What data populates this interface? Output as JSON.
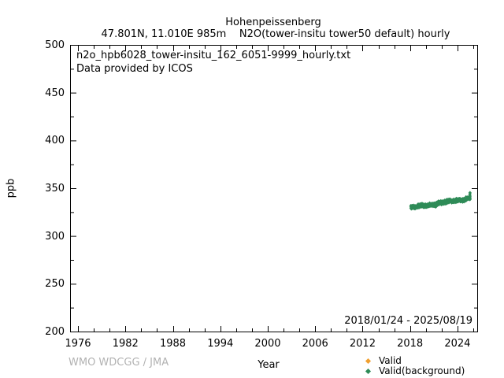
{
  "header": {
    "title": "Hohenpeissenberg",
    "subtitle": "47.801N, 11.010E 985m    N2O(tower-insitu tower50 default) hourly"
  },
  "plot": {
    "annotation_line1": "n2o_hpb6028_tower-insitu_162_6051-9999_hourly.txt",
    "annotation_line2": "Data provided by ICOS",
    "date_range": "2018/01/24 - 2025/08/19",
    "xlabel": "Year",
    "ylabel": "ppb"
  },
  "footer": {
    "credit": "WMO WDCGG / JMA"
  },
  "chart_data": {
    "type": "scatter",
    "title": "Hohenpeissenberg",
    "subtitle": "47.801N, 11.010E 985m    N2O(tower-insitu tower50 default) hourly",
    "xlabel": "Year",
    "ylabel": "ppb",
    "xlim": [
      1975,
      2026.5
    ],
    "ylim": [
      200,
      500
    ],
    "xticks": [
      1976,
      1982,
      1988,
      1994,
      2000,
      2006,
      2012,
      2018,
      2024
    ],
    "yticks": [
      200,
      250,
      300,
      350,
      400,
      450,
      500
    ],
    "x_minor_step": 2,
    "y_minor_step": 25,
    "grid": false,
    "legend_position": "below-right",
    "observed_period": "2018/01/24 - 2025/08/19",
    "legend": [
      {
        "label": "Valid",
        "color": "#f0a030"
      },
      {
        "label": "Valid(background)",
        "color": "#2e8b57"
      }
    ],
    "series": [
      {
        "name": "Valid",
        "color": "#f0a030",
        "marker": "diamond",
        "visible_points": 0
      },
      {
        "name": "Valid(background)",
        "color": "#2e8b57",
        "marker": "diamond",
        "band": {
          "x_start": 2018.07,
          "x_end": 2025.63,
          "value_start": 329.5,
          "value_end": 339.5,
          "half_width": 2.6,
          "end_spike_max": 346
        },
        "approx_annual_means_ppb": {
          "2018": 330.5,
          "2019": 331.5,
          "2020": 332.5,
          "2021": 333.5,
          "2022": 335.0,
          "2023": 336.5,
          "2024": 338.0,
          "2025": 339.5
        }
      }
    ]
  },
  "layout_colors": {
    "axis": "#000000",
    "background": "#ffffff",
    "footer_gray": "#b2b2b2"
  }
}
